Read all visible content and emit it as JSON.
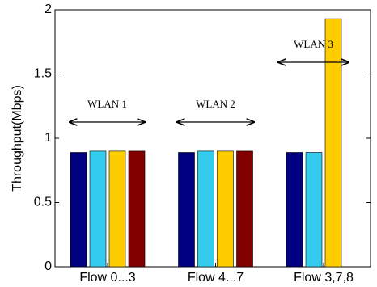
{
  "chart_data": {
    "type": "bar",
    "y_label": "Throughput(Mbps)",
    "categories": [
      "Flow 0...3",
      "Flow 4...7",
      "Flow 3,7,8"
    ],
    "series": [
      {
        "color": "#000080",
        "values": [
          0.89,
          0.89,
          0.89
        ]
      },
      {
        "color": "#33ccee",
        "values": [
          0.9,
          0.9,
          0.89
        ]
      },
      {
        "color": "#ffcc00",
        "values": [
          0.9,
          0.9,
          1.93
        ]
      },
      {
        "color": "#800000",
        "values": [
          0.9,
          0.9,
          null
        ]
      }
    ],
    "ylim": [
      0,
      2
    ],
    "yticks": [
      0,
      0.5,
      1,
      1.5,
      2
    ],
    "grid": false,
    "annotations": [
      {
        "text": "WLAN 1"
      },
      {
        "text": "WLAN 2"
      },
      {
        "text": "WLAN 3"
      }
    ]
  }
}
